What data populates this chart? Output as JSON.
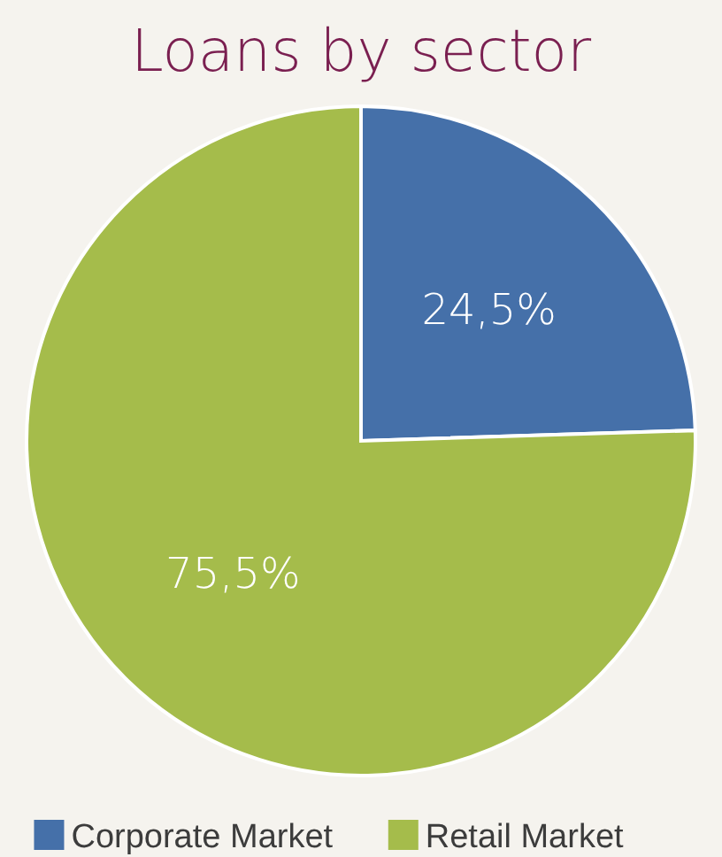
{
  "chart_data": {
    "type": "pie",
    "title": "Loans by sector",
    "categories": [
      "Corporate Market",
      "Retail Market"
    ],
    "values": [
      24.5,
      75.5
    ],
    "colors": [
      "#4570a9",
      "#a5bc4b"
    ],
    "value_labels": [
      "24,5%",
      "75,5%"
    ],
    "legend": "bottom"
  }
}
